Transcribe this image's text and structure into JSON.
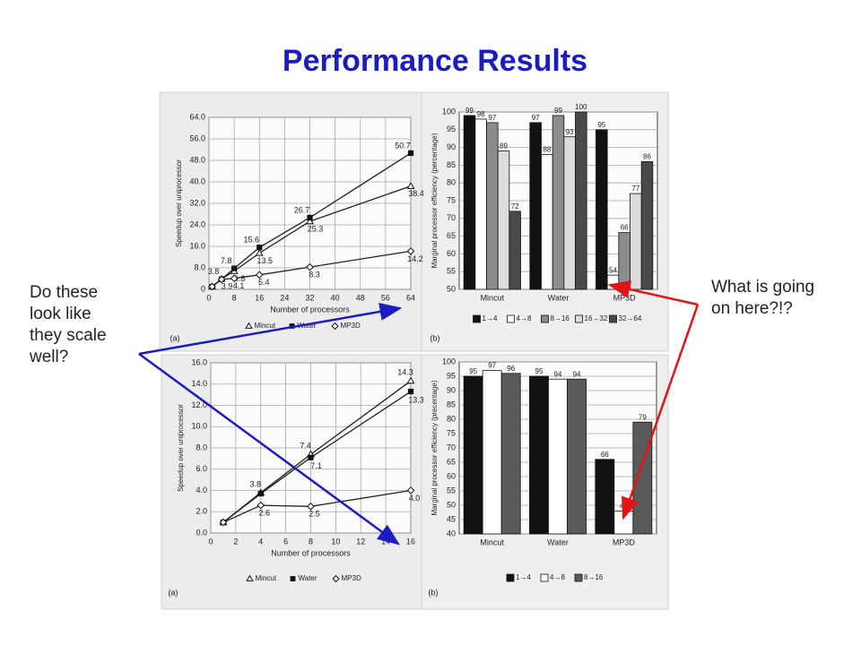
{
  "title": "Performance Results",
  "annotations": [
    {
      "lines": [
        "Do these",
        "look like",
        "they scale",
        "well?"
      ],
      "color": "#1c1cc4"
    },
    {
      "lines": [
        "What is going",
        "on here?!?"
      ],
      "color": "#e01414"
    }
  ],
  "chart_data": [
    {
      "type": "line",
      "panel": "(a)",
      "xlabel": "Number of processors",
      "ylabel": "Speedup over uniprocessor",
      "x": [
        1,
        4,
        8,
        16,
        32,
        64
      ],
      "xlim": [
        0,
        64
      ],
      "xticks": [
        0,
        8,
        16,
        24,
        32,
        40,
        48,
        56,
        64
      ],
      "ylim": [
        0,
        64
      ],
      "yticks": [
        0,
        {
          "value": 8,
          "label": "8.0"
        },
        {
          "value": 16,
          "label": "16.0"
        },
        {
          "value": 24,
          "label": "24.0"
        },
        {
          "value": 32,
          "label": "32.0"
        },
        {
          "value": 40,
          "label": "40.0"
        },
        {
          "value": 48,
          "label": "48.0"
        },
        {
          "value": 56,
          "label": "56.0"
        },
        {
          "value": 64,
          "label": "64.0"
        }
      ],
      "grid": true,
      "legend": "bottom",
      "series": [
        {
          "name": "Mincut",
          "color": "#222222",
          "marker": "triangle",
          "marker_fill": "#ffffff",
          "values": [
            1,
            3.9,
            6.8,
            13.5,
            25.3,
            38.4
          ],
          "value_labels": [
            null,
            "3.9",
            "6.8",
            "13.5",
            "25.3",
            "38.4"
          ]
        },
        {
          "name": "Water",
          "color": "#222222",
          "marker": "square",
          "marker_fill": "#111111",
          "values": [
            1,
            3.8,
            7.8,
            15.6,
            26.7,
            50.7
          ],
          "value_labels": [
            null,
            "3.8",
            "7.8",
            "15.6",
            "26.7",
            "50.7"
          ]
        },
        {
          "name": "MP3D",
          "color": "#222222",
          "marker": "diamond",
          "marker_fill": "#ffffff",
          "values": [
            1,
            3.7,
            4.1,
            5.4,
            8.3,
            14.2
          ],
          "value_labels": [
            null,
            null,
            "4.1",
            "5.4",
            "8.3",
            "14.2"
          ]
        }
      ]
    },
    {
      "type": "bar",
      "panel": "(b)",
      "ylabel": "Marginal processor efficiency (percentage)",
      "categories": [
        "Mincut",
        "Water",
        "MP3D"
      ],
      "ylim": [
        50,
        100
      ],
      "yticks": [
        50,
        55,
        60,
        65,
        70,
        75,
        80,
        85,
        90,
        95,
        100
      ],
      "grid": true,
      "legend": "bottom",
      "series": [
        {
          "name": "1→4",
          "color": "#111111",
          "values": [
            99,
            97,
            95
          ]
        },
        {
          "name": "4→8",
          "color": "#ffffff",
          "values": [
            98,
            88,
            54
          ]
        },
        {
          "name": "8→16",
          "color": "#8c8c8c",
          "values": [
            97,
            99,
            66
          ]
        },
        {
          "name": "16→32",
          "color": "#dcdcdc",
          "values": [
            89,
            93,
            77
          ]
        },
        {
          "name": "32→64",
          "color": "#4a4a4a",
          "values": [
            72,
            100,
            86
          ]
        }
      ]
    },
    {
      "type": "line",
      "panel": "(a)",
      "xlabel": "Number of processors",
      "ylabel": "Speedup over uniprocessor",
      "x": [
        1,
        4,
        8,
        16
      ],
      "xlim": [
        0,
        16
      ],
      "xticks": [
        0,
        2,
        4,
        6,
        8,
        10,
        12,
        14,
        16
      ],
      "ylim": [
        0,
        16
      ],
      "yticks": [
        {
          "value": 0,
          "label": "0.0"
        },
        {
          "value": 2,
          "label": "2.0"
        },
        {
          "value": 4,
          "label": "4.0"
        },
        {
          "value": 6,
          "label": "6.0"
        },
        {
          "value": 8,
          "label": "8.0"
        },
        {
          "value": 10,
          "label": "10.0"
        },
        {
          "value": 12,
          "label": "12.0"
        },
        {
          "value": 14,
          "label": "14.0"
        },
        {
          "value": 16,
          "label": "16.0"
        }
      ],
      "grid": true,
      "legend": "bottom",
      "series": [
        {
          "name": "Mincut",
          "color": "#222222",
          "marker": "triangle",
          "marker_fill": "#ffffff",
          "values": [
            1,
            3.8,
            7.4,
            14.3
          ],
          "value_labels": [
            null,
            "3.8",
            "7.4",
            "14.3"
          ]
        },
        {
          "name": "Water",
          "color": "#222222",
          "marker": "square",
          "marker_fill": "#111111",
          "values": [
            1,
            3.7,
            7.1,
            13.3
          ],
          "value_labels": [
            null,
            null,
            "7.1",
            "13.3"
          ]
        },
        {
          "name": "MP3D",
          "color": "#222222",
          "marker": "diamond",
          "marker_fill": "#ffffff",
          "values": [
            1,
            2.6,
            2.5,
            4.0
          ],
          "value_labels": [
            null,
            "2.6",
            "2.5",
            "4.0"
          ]
        }
      ]
    },
    {
      "type": "bar",
      "panel": "(b)",
      "ylabel": "Marginal processor efficiency (precentage)",
      "categories": [
        "Mincut",
        "Water",
        "MP3D"
      ],
      "ylim": [
        40,
        100
      ],
      "yticks": [
        40,
        45,
        50,
        55,
        60,
        65,
        70,
        75,
        80,
        85,
        90,
        95,
        100
      ],
      "grid": true,
      "legend": "bottom",
      "series": [
        {
          "name": "1→4",
          "color": "#111111",
          "values": [
            95,
            95,
            66
          ]
        },
        {
          "name": "4→8",
          "color": "#ffffff",
          "values": [
            97,
            94,
            48
          ]
        },
        {
          "name": "8→16",
          "color": "#5a5a5a",
          "values": [
            96,
            94,
            79
          ]
        }
      ]
    }
  ]
}
